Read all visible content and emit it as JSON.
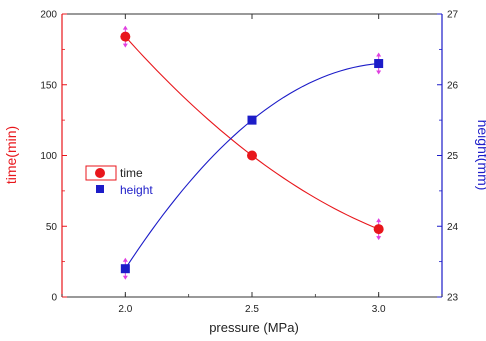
{
  "chart_data": {
    "type": "line",
    "xlabel": "pressure (MPa)",
    "xlim": [
      1.75,
      3.25
    ],
    "x_ticks": [
      "2.0",
      "2.5",
      "3.0"
    ],
    "x": [
      2.0,
      2.5,
      3.0
    ],
    "y_left": {
      "label": "time(min)",
      "ylim": [
        0,
        200
      ],
      "ticks": [
        "0",
        "50",
        "100",
        "150",
        "200"
      ],
      "color": "#e8161b"
    },
    "y_right": {
      "label": "height(mm)",
      "ylim": [
        23,
        27
      ],
      "ticks": [
        "23",
        "24",
        "25",
        "26",
        "27"
      ],
      "color": "#1c1cc8"
    },
    "series": [
      {
        "name": "time",
        "axis": "left",
        "marker": "circle",
        "color": "#e8161b",
        "values": [
          184,
          100,
          48
        ]
      },
      {
        "name": "height",
        "axis": "right",
        "marker": "square",
        "color": "#1c1cc8",
        "values": [
          23.4,
          25.5,
          26.3
        ]
      }
    ],
    "error_bar_color": "#e040e0",
    "legend_position": "left",
    "grid": false
  }
}
